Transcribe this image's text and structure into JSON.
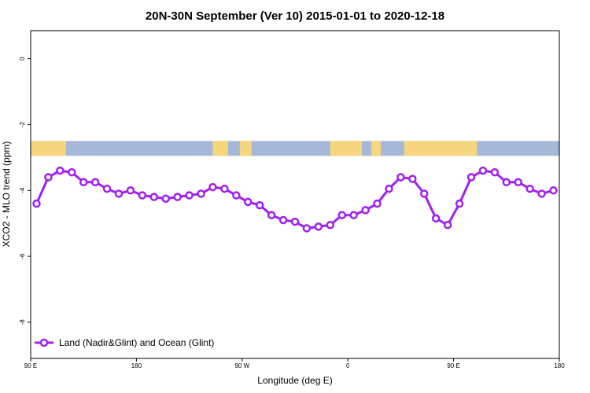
{
  "chart_data": {
    "type": "line",
    "title": "20N-30N September (Ver 10)   2015-01-01 to 2020-12-18",
    "xlabel": "Longitude (deg E)",
    "ylabel": "XCO2 - MLO trend (ppm)",
    "x_tick_labels": [
      "90 E",
      "180",
      "90 W",
      "0",
      "90 E",
      "180"
    ],
    "y_tick_labels": [
      "0",
      "-2",
      "-4",
      "-6",
      "-8"
    ],
    "x_ticks": [
      90,
      180,
      270,
      360,
      450,
      540
    ],
    "y_ticks": [
      0,
      -2,
      -4,
      -6,
      -8
    ],
    "xlim": [
      90,
      540
    ],
    "ylim": [
      -9.1,
      0.85
    ],
    "grid": false,
    "legend_position": "bottom-left",
    "series": [
      {
        "name": "Land (Nadir&Glint) and Ocean (Glint)",
        "color": "#a020f0",
        "x": [
          95,
          105,
          115,
          125,
          135,
          145,
          155,
          165,
          175,
          185,
          195,
          205,
          215,
          225,
          235,
          245,
          255,
          265,
          275,
          285,
          295,
          305,
          315,
          325,
          335,
          345,
          355,
          365,
          375,
          385,
          395,
          405,
          415,
          425,
          435,
          445,
          455,
          465,
          475,
          485,
          495,
          505,
          515,
          525,
          535
        ],
        "y": [
          -4.4,
          -3.6,
          -3.4,
          -3.45,
          -3.75,
          -3.75,
          -3.95,
          -4.1,
          -4.0,
          -4.15,
          -4.2,
          -4.25,
          -4.2,
          -4.15,
          -4.1,
          -3.9,
          -3.95,
          -4.15,
          -4.35,
          -4.45,
          -4.75,
          -4.9,
          -4.95,
          -5.15,
          -5.1,
          -5.05,
          -4.75,
          -4.75,
          -4.6,
          -4.4,
          -3.95,
          -3.6,
          -3.65,
          -4.1,
          -4.85,
          -5.05,
          -4.4,
          -3.6,
          -3.4,
          -3.45,
          -3.75,
          -3.75,
          -3.95,
          -4.1,
          -4.0
        ]
      }
    ],
    "map_strip": {
      "y_range": [
        -2.5,
        -2.95
      ],
      "ocean_color": "#a5b8d8",
      "land_color": "#f5d67c",
      "land_lon_ranges": [
        [
          90,
          120
        ],
        [
          245,
          258
        ],
        [
          268,
          278
        ],
        [
          345,
          372
        ],
        [
          380,
          388
        ],
        [
          408,
          470
        ]
      ]
    }
  }
}
